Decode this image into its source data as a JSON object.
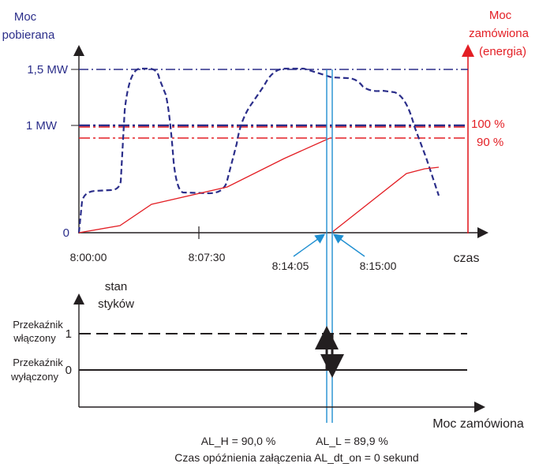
{
  "left_axis": {
    "title_line1": "Moc",
    "title_line2": "pobierana",
    "color": "#2b2e8a"
  },
  "right_axis": {
    "title_line1": "Moc",
    "title_line2": "zamówiona",
    "title_line3": "(energia)",
    "color": "#e31e24"
  },
  "y_ticks": {
    "mw15": "1,5 MW",
    "mw1": "1 MW",
    "zero": "0"
  },
  "pct_labels": {
    "p100": "100 %",
    "p90": "90 %"
  },
  "time_labels": {
    "t0": "8:00:00",
    "t1": "8:07:30",
    "t2": "8:14:05",
    "t3": "8:15:00"
  },
  "time_axis_label": "czas",
  "state_chart": {
    "title_line1": "stan",
    "title_line2": "styków",
    "on_line1": "Przekaźnik",
    "on_line2": "włączony",
    "off_line1": "Przekaźnik",
    "off_line2": "wyłączony",
    "level_on": "1",
    "level_off": "0",
    "x_axis_label": "Moc zamówiona"
  },
  "footer": {
    "al_h": "AL_H = 90,0 %",
    "al_l": "AL_L = 89,9 %",
    "delay": "Czas opóźnienia załączenia AL_dt_on = 0 sekund"
  },
  "colors": {
    "navy": "#2b2e8a",
    "red": "#e31e24",
    "blue": "#1f8fd1",
    "black": "#231f20"
  }
}
